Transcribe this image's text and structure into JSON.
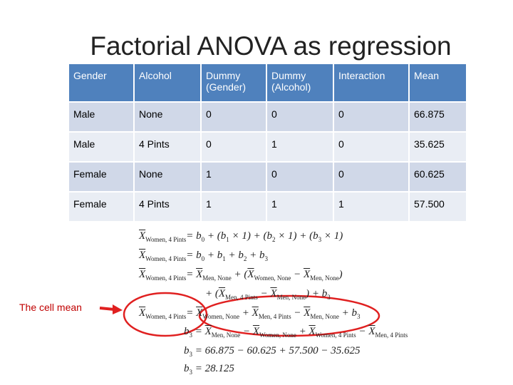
{
  "title": "Factorial ANOVA as regression",
  "table": {
    "header": [
      "Gender",
      "Alcohol",
      "Dummy (Gender)",
      "Dummy (Alcohol)",
      "Interaction",
      "Mean"
    ],
    "rows": [
      [
        "Male",
        "None",
        "0",
        "0",
        "0",
        "66.875"
      ],
      [
        "Male",
        "4 Pints",
        "0",
        "1",
        "0",
        "35.625"
      ],
      [
        "Female",
        "None",
        "1",
        "0",
        "0",
        "60.625"
      ],
      [
        "Female",
        "4 Pints",
        "1",
        "1",
        "1",
        "57.500"
      ]
    ]
  },
  "annotation": "The cell mean",
  "equations": [
    [
      "X",
      "Women, 4 Pints",
      "= b",
      "0",
      " + (b",
      "1",
      " × 1) + (b",
      "2",
      " × 1) + (b",
      "3",
      " × 1)"
    ],
    [
      "X",
      "Women, 4 Pints",
      "= b",
      "0",
      " + b",
      "1",
      " + b",
      "2",
      " + b",
      "3"
    ],
    [
      "X",
      "Women, 4 Pints",
      "= ",
      "X",
      "Men, None",
      " + (",
      "X",
      "Women, None",
      " − ",
      "X",
      "Men, None",
      ")"
    ],
    [
      "+ (",
      "X",
      "Men, 4 Pints",
      " − ",
      "X",
      "Men, None",
      ") + b",
      "3"
    ],
    [
      "X",
      "Women, 4 Pints",
      "= ",
      "X",
      "Women, None",
      " + ",
      "X",
      "Men, 4 Pints",
      " − ",
      "X",
      "Men, None",
      " + b",
      "3"
    ],
    [
      "b",
      "3",
      " = ",
      "X",
      "Men, None",
      " − ",
      "X",
      "Women, None",
      " + ",
      "X",
      "Women, 4 Pints",
      " − ",
      "X",
      "Men, 4 Pints"
    ],
    [
      "b",
      "3",
      " = 66.875 − 60.625 + 57.500 − 35.625"
    ],
    [
      "b",
      "3",
      " = 28.125"
    ]
  ]
}
